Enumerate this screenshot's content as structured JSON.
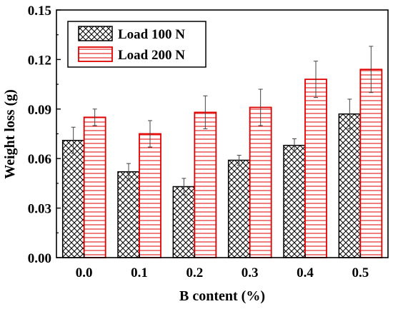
{
  "chart_data": {
    "type": "bar",
    "title": "",
    "xlabel": "B content (%)",
    "ylabel": "Weight loss (g)",
    "categories": [
      "0.0",
      "0.1",
      "0.2",
      "0.3",
      "0.4",
      "0.5"
    ],
    "ylim": [
      0,
      0.15
    ],
    "yticks": [
      "0.00",
      "0.03",
      "0.06",
      "0.09",
      "0.12",
      "0.15"
    ],
    "legend_position": "top-left",
    "grid": false,
    "series": [
      {
        "name": "Load 100 N",
        "values": [
          0.071,
          0.052,
          0.043,
          0.059,
          0.068,
          0.087
        ],
        "errors": [
          0.008,
          0.005,
          0.005,
          0.003,
          0.004,
          0.009
        ],
        "color": "#000000",
        "pattern": "crosshatch"
      },
      {
        "name": "Load 200 N",
        "values": [
          0.085,
          0.075,
          0.088,
          0.091,
          0.108,
          0.114
        ],
        "errors": [
          0.005,
          0.008,
          0.01,
          0.011,
          0.011,
          0.014
        ],
        "color": "#e00000",
        "pattern": "horizontal"
      }
    ]
  }
}
